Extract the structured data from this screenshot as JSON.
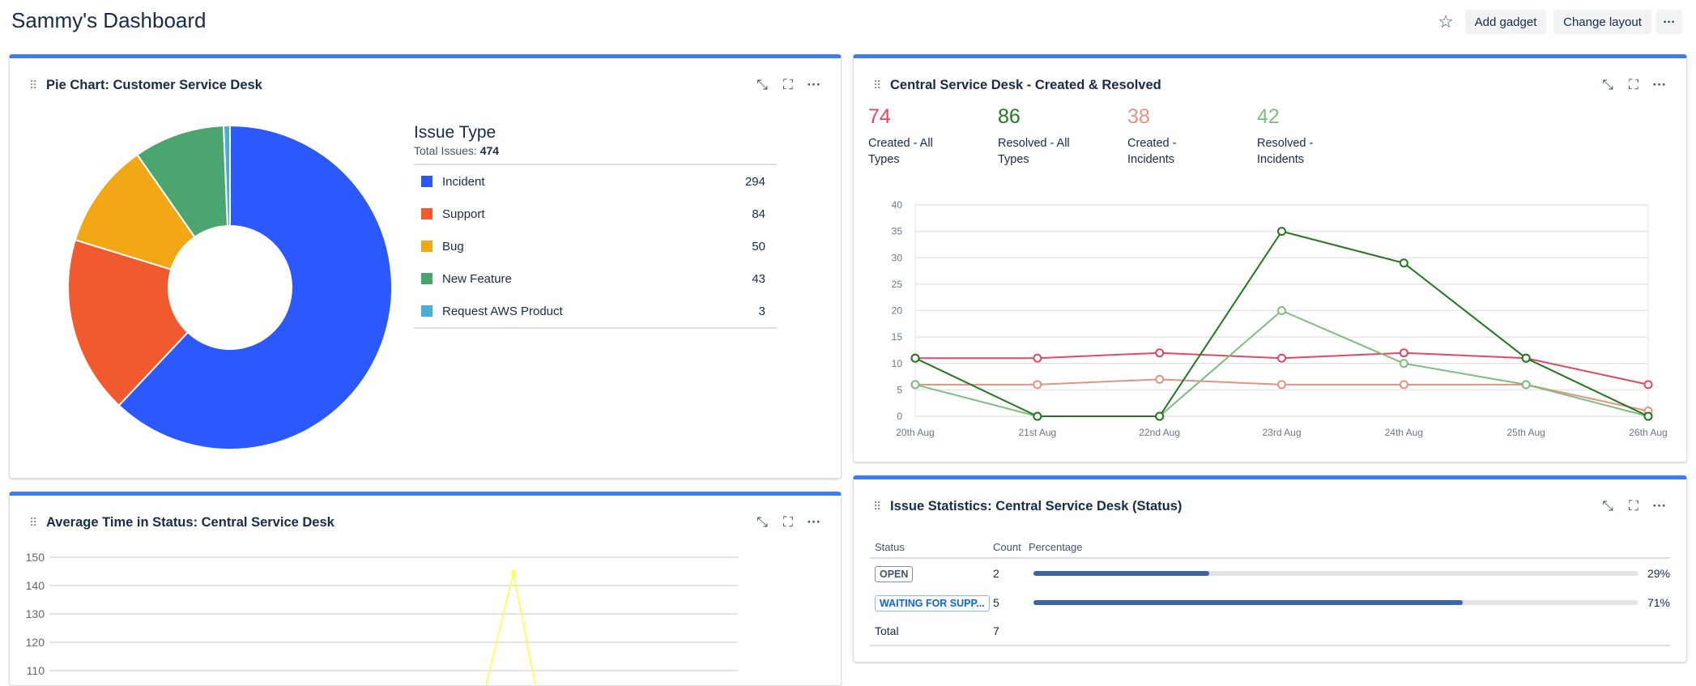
{
  "header": {
    "title": "Sammy's Dashboard",
    "star_icon": "star-icon",
    "add_gadget": "Add gadget",
    "change_layout": "Change layout",
    "more": "···"
  },
  "gadget_icons": {
    "minimize": "↙",
    "expand": "⛶",
    "more": "···",
    "grip": "⠿"
  },
  "pie_gadget": {
    "title": "Pie Chart: Customer Service Desk",
    "legend_title": "Issue Type",
    "total_label": "Total Issues:",
    "total": "474",
    "chart_data": {
      "type": "pie",
      "donut": true,
      "categories": [
        "Incident",
        "Support",
        "Bug",
        "New Feature",
        "Request AWS Product"
      ],
      "values": [
        294,
        84,
        50,
        43,
        3
      ],
      "colors": [
        "#2b59ff",
        "#f15a2e",
        "#f2a815",
        "#4aa56e",
        "#45afd8"
      ]
    },
    "items": [
      {
        "label": "Incident",
        "value": "294",
        "color": "#2b59ff"
      },
      {
        "label": "Support",
        "value": "84",
        "color": "#f15a2e"
      },
      {
        "label": "Bug",
        "value": "50",
        "color": "#f2a815"
      },
      {
        "label": "New Feature",
        "value": "43",
        "color": "#4aa56e"
      },
      {
        "label": "Request AWS Product",
        "value": "3",
        "color": "#45afd8"
      }
    ]
  },
  "cr_gadget": {
    "title": "Central Service Desk - Created & Resolved",
    "stats": [
      {
        "value": "74",
        "label": "Created - All Types",
        "color": "#e2485f"
      },
      {
        "value": "86",
        "label": "Resolved - All Types",
        "color": "#22771f"
      },
      {
        "value": "38",
        "label": "Created - Incidents",
        "color": "#e39283"
      },
      {
        "value": "42",
        "label": "Resolved - Incidents",
        "color": "#7fbd7f"
      }
    ],
    "chart_data": {
      "type": "line",
      "categories": [
        "20th Aug",
        "21st Aug",
        "22nd Aug",
        "23rd Aug",
        "24th Aug",
        "25th Aug",
        "26th Aug"
      ],
      "ylim": [
        0,
        40
      ],
      "yticks": [
        0,
        5,
        10,
        15,
        20,
        25,
        30,
        35,
        40
      ],
      "grid": true,
      "series": [
        {
          "name": "Created - All Types",
          "color": "#e2485f",
          "values": [
            11,
            11,
            12,
            11,
            12,
            11,
            6
          ]
        },
        {
          "name": "Created - Incidents",
          "color": "#e39283",
          "values": [
            6,
            6,
            7,
            6,
            6,
            6,
            1
          ]
        },
        {
          "name": "Resolved - Incidents",
          "color": "#7fbd7f",
          "values": [
            6,
            0,
            0,
            20,
            10,
            6,
            0
          ]
        },
        {
          "name": "Resolved - All Types",
          "color": "#22771f",
          "values": [
            11,
            0,
            0,
            35,
            29,
            11,
            0
          ]
        }
      ]
    }
  },
  "ats_gadget": {
    "title": "Average Time in Status: Central Service Desk",
    "chart_data": {
      "type": "line",
      "yticks": [
        150,
        140,
        130,
        120,
        110
      ],
      "grid": true,
      "series": [
        {
          "color": "#ffff33",
          "peak_value": 144.5
        }
      ]
    }
  },
  "stats_gadget": {
    "title": "Issue Statistics: Central Service Desk (Status)",
    "columns": [
      "Status",
      "Count",
      "Percentage"
    ],
    "rows": [
      {
        "status": "OPEN",
        "count": "2",
        "percent": 29,
        "percent_label": "29%"
      },
      {
        "status": "WAITING FOR SUPP...",
        "count": "5",
        "percent": 71,
        "percent_label": "71%"
      }
    ],
    "total_label": "Total",
    "total": "7"
  }
}
